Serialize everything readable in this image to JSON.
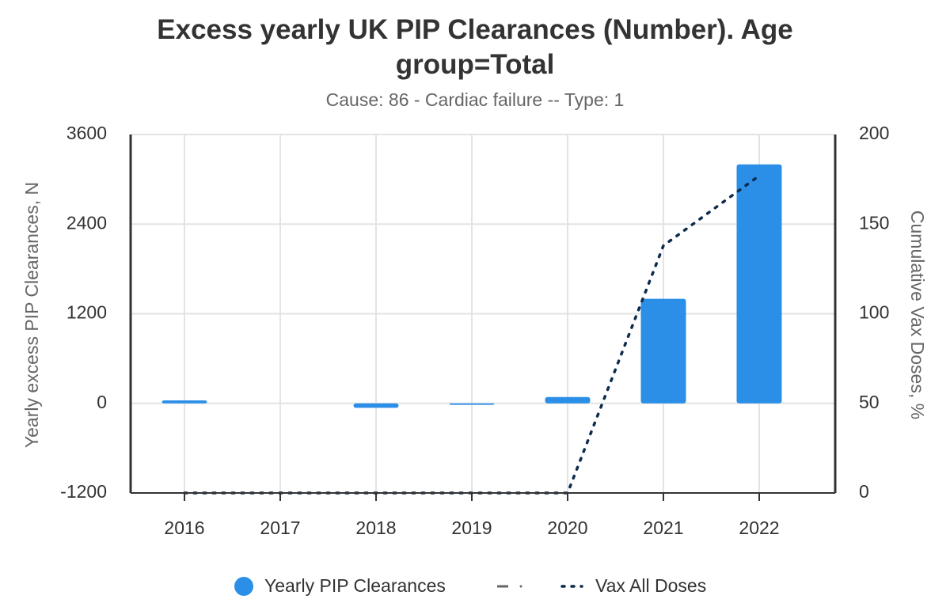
{
  "chart_data": {
    "type": "bar_line",
    "title": "Excess yearly UK PIP Clearances (Number). Age group=Total",
    "subtitle": "Cause: 86 - Cardiac failure -- Type: 1",
    "y_label": "Yearly excess PIP Clearances, N",
    "y2_label": "Cumulative Vax Doses, %",
    "categories": [
      "2016",
      "2017",
      "2018",
      "2019",
      "2020",
      "2021",
      "2022"
    ],
    "series": [
      {
        "name": "Yearly PIP Clearances",
        "type": "bar",
        "color": "#2b8fe8",
        "values": [
          40,
          0,
          -60,
          -20,
          85,
          1400,
          3200
        ]
      },
      {
        "name": "Vax All Doses",
        "type": "line",
        "axis": "y2",
        "color": "#0d2b4d",
        "values": [
          0,
          0,
          0,
          0,
          0,
          138,
          177
        ]
      }
    ],
    "ylim": [
      -1200,
      3600
    ],
    "yticks": [
      -1200,
      0,
      1200,
      2400,
      3600
    ],
    "y2lim": [
      0,
      200
    ],
    "y2ticks": [
      0,
      50,
      100,
      150,
      200
    ],
    "grid": true
  }
}
